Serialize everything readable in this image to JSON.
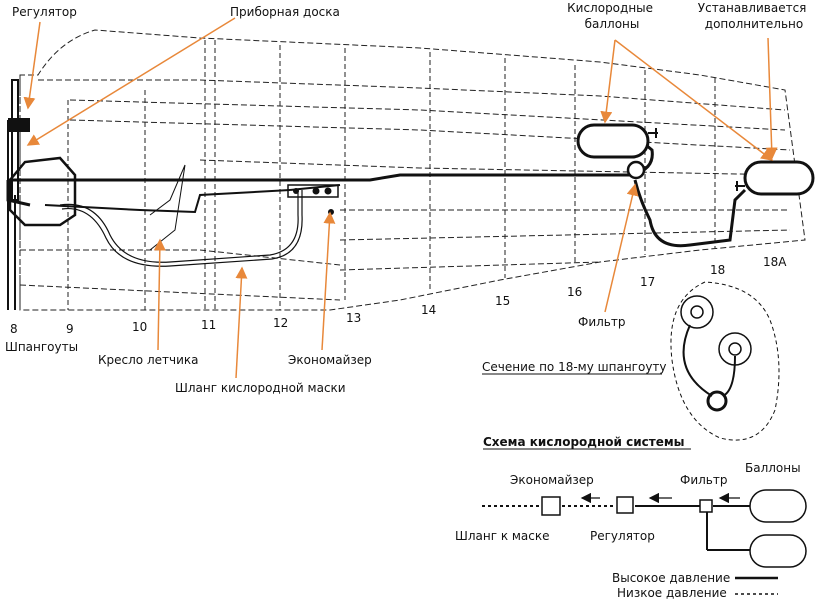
{
  "callouts": {
    "regulator": "Регулятор",
    "instrument_panel": "Приборная доска",
    "oxygen_bottles": "Кислородные\nбаллоны",
    "installed_additionally": "Устанавливается\nдополнительно",
    "pilot_seat": "Кресло летчика",
    "oxygen_mask_hose": "Шланг кислородной маски",
    "economizer": "Экономайзер",
    "filter": "Фильтр"
  },
  "frames": {
    "title": "Шпангоуты",
    "numbers": [
      "8",
      "9",
      "10",
      "11",
      "12",
      "13",
      "14",
      "15",
      "16",
      "17",
      "18",
      "18А"
    ]
  },
  "section": {
    "title": "Сечение по 18-му шпангоуту"
  },
  "schematic": {
    "title": "Схема кислородной системы",
    "economizer": "Экономайзер",
    "filter": "Фильтр",
    "bottles": "Баллоны",
    "mask_hose": "Шланг к маске",
    "regulator": "Регулятор",
    "legend_high": "Высокое давление",
    "legend_low": "Низкое давление"
  },
  "colors": {
    "callout": "#e8883a",
    "line": "#111111"
  }
}
